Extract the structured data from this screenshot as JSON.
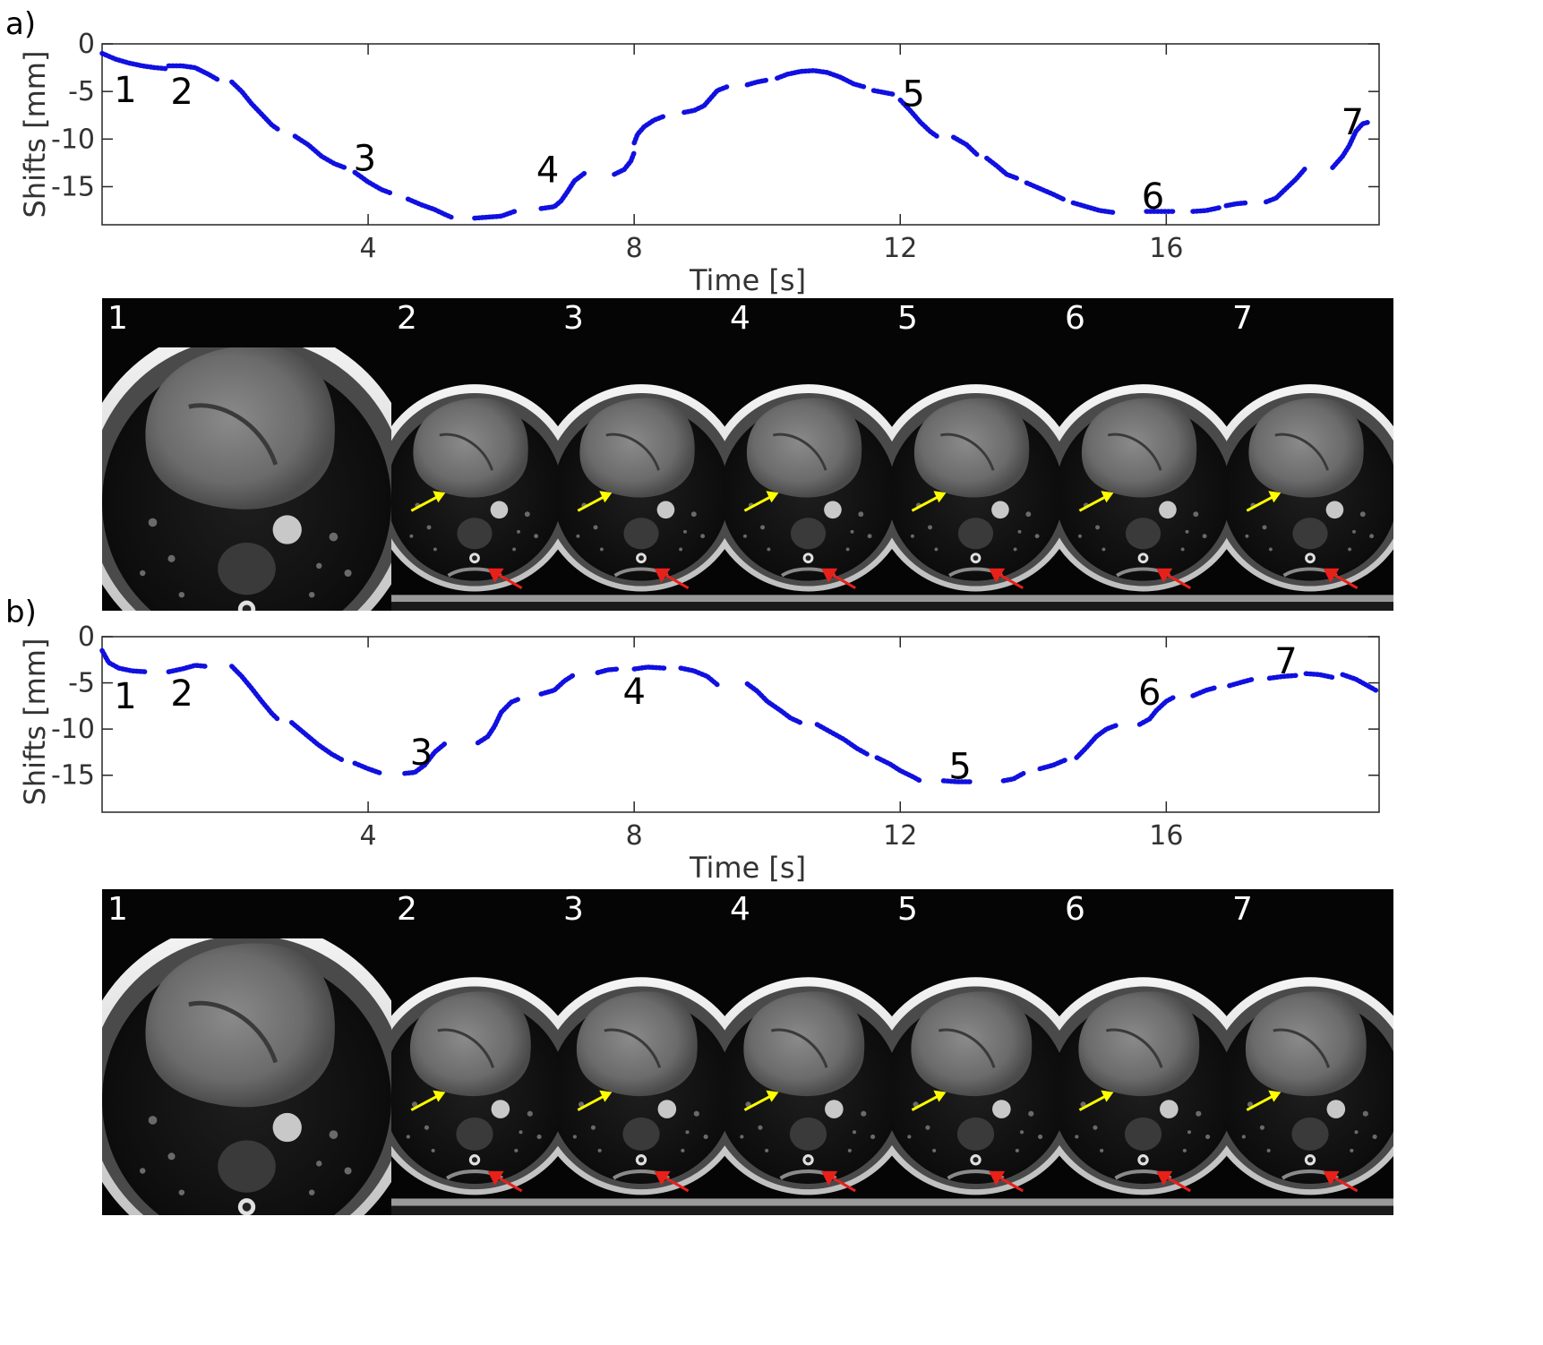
{
  "figure": {
    "panels": [
      {
        "id": "a",
        "panel_label": "a)",
        "xlabel": "Time [s]",
        "ylabel": "Shifts [mm]",
        "frame_labels": [
          "1",
          "2",
          "3",
          "4",
          "5",
          "6",
          "7"
        ],
        "arrow_colors": {
          "yellow": "#ffff00",
          "red": "#e8201a"
        }
      },
      {
        "id": "b",
        "panel_label": "b)",
        "xlabel": "Time [s]",
        "ylabel": "Shifts [mm]",
        "frame_labels": [
          "1",
          "2",
          "3",
          "4",
          "5",
          "6",
          "7"
        ],
        "arrow_colors": {
          "yellow": "#ffff00",
          "red": "#e8201a"
        }
      }
    ]
  },
  "chart_data": [
    {
      "type": "scatter",
      "panel": "a",
      "xlabel": "Time [s]",
      "ylabel": "Shifts [mm]",
      "xlim": [
        0,
        19.2
      ],
      "ylim": [
        -19,
        0
      ],
      "xticks": [
        4,
        8,
        12,
        16
      ],
      "yticks": [
        0,
        -5,
        -10,
        -15
      ],
      "ytick_labels": [
        "0",
        "-5",
        "-10",
        "-15"
      ],
      "color": "#1010e0",
      "segments": [
        [
          [
            0.0,
            -1.0
          ],
          [
            0.2,
            -1.6
          ],
          [
            0.4,
            -2.0
          ],
          [
            0.6,
            -2.3
          ],
          [
            0.8,
            -2.5
          ],
          [
            0.95,
            -2.6
          ]
        ],
        [
          [
            1.0,
            -2.3
          ],
          [
            1.2,
            -2.3
          ],
          [
            1.4,
            -2.5
          ],
          [
            1.6,
            -3.2
          ],
          [
            1.75,
            -3.8
          ]
        ],
        [
          [
            1.95,
            -4.0
          ],
          [
            2.1,
            -5.0
          ],
          [
            2.25,
            -6.3
          ],
          [
            2.4,
            -7.4
          ],
          [
            2.55,
            -8.5
          ],
          [
            2.65,
            -9.0
          ]
        ],
        [
          [
            2.9,
            -9.7
          ],
          [
            3.1,
            -10.6
          ],
          [
            3.3,
            -11.8
          ],
          [
            3.5,
            -12.6
          ],
          [
            3.65,
            -13.0
          ]
        ],
        [
          [
            3.8,
            -13.5
          ],
          [
            4.0,
            -14.5
          ],
          [
            4.2,
            -15.3
          ],
          [
            4.35,
            -15.7
          ]
        ],
        [
          [
            4.6,
            -16.3
          ],
          [
            4.8,
            -16.9
          ],
          [
            5.0,
            -17.4
          ],
          [
            5.15,
            -17.9
          ],
          [
            5.25,
            -18.2
          ]
        ],
        [
          [
            5.6,
            -18.3
          ],
          [
            5.8,
            -18.2
          ],
          [
            6.0,
            -18.1
          ],
          [
            6.2,
            -17.6
          ]
        ],
        [
          [
            6.6,
            -17.3
          ],
          [
            6.8,
            -17.1
          ],
          [
            6.9,
            -16.5
          ],
          [
            7.0,
            -15.5
          ],
          [
            7.1,
            -14.4
          ],
          [
            7.25,
            -13.6
          ]
        ],
        [
          [
            7.7,
            -13.7
          ],
          [
            7.85,
            -13.2
          ],
          [
            7.95,
            -12.3
          ],
          [
            8.0,
            -11.4
          ]
        ],
        [
          [
            8.0,
            -10.4
          ],
          [
            8.05,
            -9.5
          ],
          [
            8.15,
            -8.7
          ],
          [
            8.3,
            -8.0
          ],
          [
            8.45,
            -7.6
          ]
        ],
        [
          [
            8.75,
            -7.2
          ],
          [
            8.9,
            -7.0
          ],
          [
            9.05,
            -6.5
          ],
          [
            9.15,
            -5.7
          ],
          [
            9.25,
            -4.9
          ],
          [
            9.4,
            -4.5
          ]
        ],
        [
          [
            9.7,
            -4.3
          ],
          [
            9.85,
            -4.0
          ],
          [
            10.0,
            -3.8
          ]
        ],
        [
          [
            10.15,
            -3.6
          ],
          [
            10.3,
            -3.2
          ],
          [
            10.5,
            -2.9
          ],
          [
            10.7,
            -2.8
          ],
          [
            10.9,
            -3.0
          ],
          [
            11.1,
            -3.5
          ],
          [
            11.3,
            -4.2
          ],
          [
            11.45,
            -4.5
          ]
        ],
        [
          [
            11.6,
            -4.9
          ],
          [
            11.75,
            -5.1
          ],
          [
            11.9,
            -5.3
          ]
        ],
        [
          [
            12.0,
            -5.9
          ],
          [
            12.15,
            -7.0
          ],
          [
            12.3,
            -8.2
          ],
          [
            12.45,
            -9.2
          ],
          [
            12.55,
            -9.7
          ]
        ],
        [
          [
            12.8,
            -9.8
          ],
          [
            13.0,
            -10.6
          ],
          [
            13.15,
            -11.6
          ]
        ],
        [
          [
            13.3,
            -12.0
          ],
          [
            13.45,
            -12.8
          ],
          [
            13.6,
            -13.7
          ],
          [
            13.75,
            -14.1
          ]
        ],
        [
          [
            13.9,
            -14.6
          ],
          [
            14.1,
            -15.2
          ],
          [
            14.3,
            -15.8
          ],
          [
            14.45,
            -16.3
          ]
        ],
        [
          [
            14.6,
            -16.7
          ],
          [
            14.8,
            -17.1
          ],
          [
            15.0,
            -17.5
          ],
          [
            15.2,
            -17.7
          ]
        ],
        [
          [
            15.7,
            -17.6
          ],
          [
            15.9,
            -17.6
          ],
          [
            16.1,
            -17.6
          ]
        ],
        [
          [
            16.4,
            -17.6
          ],
          [
            16.6,
            -17.5
          ],
          [
            16.8,
            -17.2
          ]
        ],
        [
          [
            16.9,
            -17.0
          ],
          [
            17.05,
            -16.8
          ],
          [
            17.2,
            -16.7
          ]
        ],
        [
          [
            17.5,
            -16.6
          ],
          [
            17.65,
            -16.2
          ],
          [
            17.8,
            -15.2
          ],
          [
            17.95,
            -14.2
          ],
          [
            18.1,
            -13.0
          ]
        ],
        [
          [
            18.5,
            -13.0
          ],
          [
            18.65,
            -11.8
          ],
          [
            18.75,
            -10.7
          ],
          [
            18.85,
            -9.2
          ],
          [
            18.95,
            -8.4
          ],
          [
            19.05,
            -8.2
          ]
        ]
      ],
      "annotations": [
        {
          "text": "1",
          "x": 0.35,
          "y": -4.8
        },
        {
          "text": "2",
          "x": 1.2,
          "y": -5.0
        },
        {
          "text": "3",
          "x": 3.95,
          "y": -12.0
        },
        {
          "text": "4",
          "x": 6.7,
          "y": -13.2
        },
        {
          "text": "5",
          "x": 12.2,
          "y": -5.2
        },
        {
          "text": "6",
          "x": 15.8,
          "y": -16.0
        },
        {
          "text": "7",
          "x": 18.8,
          "y": -8.2
        }
      ]
    },
    {
      "type": "scatter",
      "panel": "b",
      "xlabel": "Time [s]",
      "ylabel": "Shifts [mm]",
      "xlim": [
        0,
        19.2
      ],
      "ylim": [
        -19,
        0
      ],
      "xticks": [
        4,
        8,
        12,
        16
      ],
      "yticks": [
        0,
        -5,
        -10,
        -15
      ],
      "ytick_labels": [
        "0",
        "-5",
        "-10",
        "-15"
      ],
      "color": "#1010e0",
      "segments": [
        [
          [
            0.0,
            -1.5
          ],
          [
            0.1,
            -2.8
          ],
          [
            0.25,
            -3.4
          ],
          [
            0.45,
            -3.7
          ],
          [
            0.65,
            -3.8
          ]
        ],
        [
          [
            1.0,
            -3.8
          ],
          [
            1.2,
            -3.5
          ],
          [
            1.4,
            -3.1
          ],
          [
            1.55,
            -3.2
          ]
        ],
        [
          [
            1.95,
            -3.2
          ],
          [
            2.1,
            -4.3
          ],
          [
            2.25,
            -5.6
          ],
          [
            2.4,
            -7.0
          ],
          [
            2.55,
            -8.3
          ],
          [
            2.65,
            -9.0
          ]
        ],
        [
          [
            2.85,
            -9.3
          ],
          [
            3.05,
            -10.5
          ],
          [
            3.25,
            -11.7
          ],
          [
            3.45,
            -12.7
          ],
          [
            3.6,
            -13.3
          ]
        ],
        [
          [
            3.8,
            -13.7
          ],
          [
            4.0,
            -14.3
          ],
          [
            4.2,
            -14.8
          ]
        ],
        [
          [
            4.55,
            -14.8
          ],
          [
            4.7,
            -14.7
          ],
          [
            4.85,
            -13.9
          ],
          [
            5.0,
            -12.5
          ],
          [
            5.15,
            -11.6
          ]
        ],
        [
          [
            5.65,
            -11.5
          ],
          [
            5.8,
            -10.8
          ],
          [
            5.9,
            -9.7
          ],
          [
            6.0,
            -8.2
          ],
          [
            6.15,
            -7.1
          ],
          [
            6.25,
            -6.8
          ]
        ],
        [
          [
            6.6,
            -6.2
          ],
          [
            6.8,
            -5.8
          ],
          [
            6.95,
            -4.8
          ],
          [
            7.1,
            -4.1
          ]
        ],
        [
          [
            7.45,
            -3.9
          ],
          [
            7.6,
            -3.6
          ],
          [
            7.75,
            -3.5
          ]
        ],
        [
          [
            8.0,
            -3.5
          ],
          [
            8.2,
            -3.3
          ],
          [
            8.45,
            -3.4
          ]
        ],
        [
          [
            8.7,
            -3.4
          ],
          [
            8.9,
            -3.7
          ],
          [
            9.1,
            -4.3
          ],
          [
            9.25,
            -5.2
          ]
        ],
        [
          [
            9.7,
            -5.1
          ],
          [
            9.85,
            -5.9
          ],
          [
            10.0,
            -7.0
          ],
          [
            10.2,
            -8.0
          ],
          [
            10.35,
            -8.8
          ],
          [
            10.5,
            -9.3
          ]
        ],
        [
          [
            10.75,
            -9.5
          ],
          [
            10.95,
            -10.3
          ],
          [
            11.15,
            -11.1
          ],
          [
            11.35,
            -12.1
          ],
          [
            11.5,
            -12.7
          ]
        ],
        [
          [
            11.65,
            -13.1
          ],
          [
            11.85,
            -13.8
          ],
          [
            12.0,
            -14.5
          ],
          [
            12.2,
            -15.2
          ],
          [
            12.3,
            -15.6
          ]
        ],
        [
          [
            12.65,
            -15.6
          ],
          [
            12.85,
            -15.7
          ],
          [
            13.05,
            -15.7
          ]
        ],
        [
          [
            13.55,
            -15.6
          ],
          [
            13.7,
            -15.4
          ],
          [
            13.85,
            -14.8
          ]
        ],
        [
          [
            14.1,
            -14.3
          ],
          [
            14.3,
            -13.9
          ],
          [
            14.5,
            -13.3
          ]
        ],
        [
          [
            14.65,
            -13.1
          ],
          [
            14.8,
            -12.0
          ],
          [
            14.95,
            -10.8
          ],
          [
            15.1,
            -10.0
          ],
          [
            15.25,
            -9.6
          ]
        ],
        [
          [
            15.6,
            -9.5
          ],
          [
            15.75,
            -8.9
          ],
          [
            15.85,
            -8.0
          ],
          [
            16.0,
            -7.0
          ],
          [
            16.1,
            -6.6
          ]
        ],
        [
          [
            16.4,
            -6.4
          ],
          [
            16.6,
            -5.8
          ],
          [
            16.75,
            -5.5
          ]
        ],
        [
          [
            16.95,
            -5.3
          ],
          [
            17.15,
            -4.9
          ],
          [
            17.3,
            -4.6
          ]
        ],
        [
          [
            17.55,
            -4.5
          ],
          [
            17.75,
            -4.3
          ],
          [
            17.95,
            -4.2
          ]
        ],
        [
          [
            18.1,
            -4.0
          ],
          [
            18.3,
            -4.1
          ],
          [
            18.5,
            -4.4
          ]
        ],
        [
          [
            18.65,
            -4.1
          ],
          [
            18.85,
            -4.6
          ],
          [
            19.0,
            -5.2
          ],
          [
            19.15,
            -5.8
          ]
        ]
      ],
      "annotations": [
        {
          "text": "1",
          "x": 0.35,
          "y": -6.4
        },
        {
          "text": "2",
          "x": 1.2,
          "y": -6.1
        },
        {
          "text": "3",
          "x": 4.8,
          "y": -12.5
        },
        {
          "text": "4",
          "x": 8.0,
          "y": -5.9
        },
        {
          "text": "5",
          "x": 12.9,
          "y": -14.0
        },
        {
          "text": "6",
          "x": 15.75,
          "y": -6.0
        },
        {
          "text": "7",
          "x": 17.8,
          "y": -2.6
        }
      ]
    }
  ]
}
